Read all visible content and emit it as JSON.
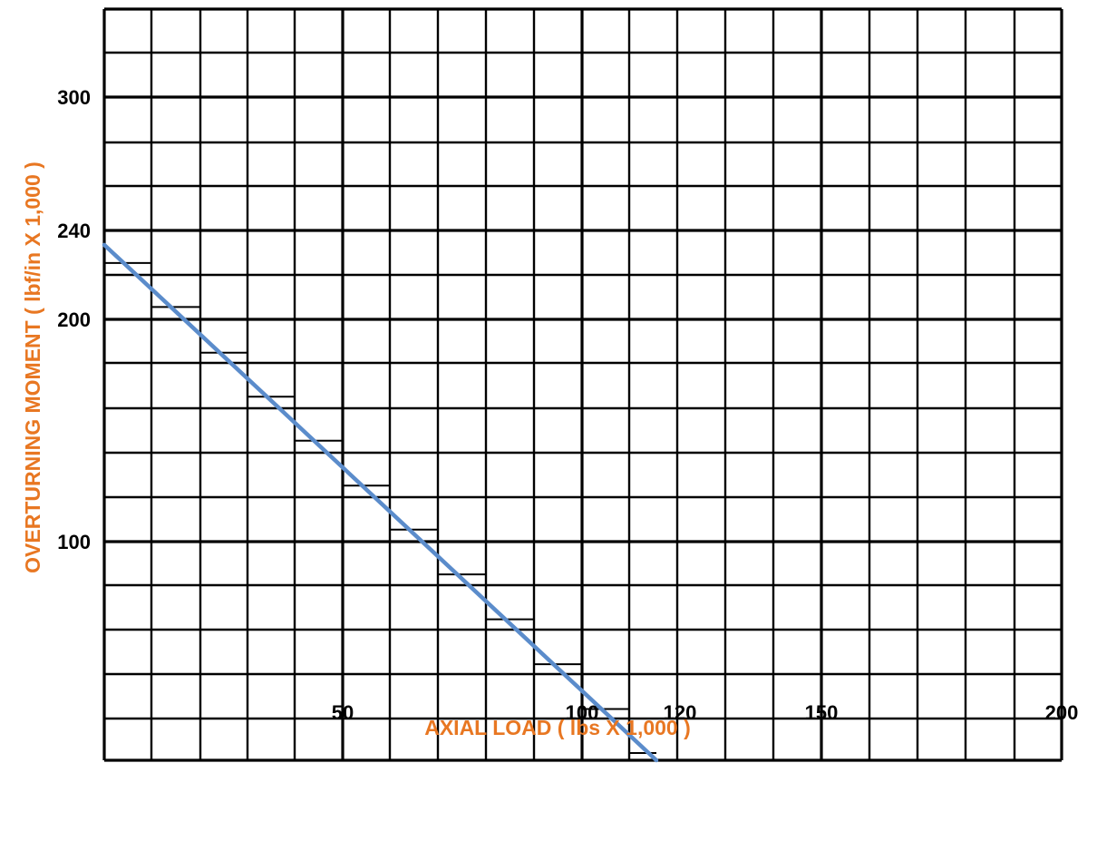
{
  "chart_data": {
    "type": "line",
    "title": "",
    "xlabel": "AXIAL LOAD  ( lbs X 1,000 )",
    "ylabel": "OVERTURNING MOMENT ( lbf/in X 1,000 )",
    "x_tick_labels": [
      "50",
      "100",
      "120",
      "150",
      "200"
    ],
    "y_tick_labels": [
      "300",
      "240",
      "200",
      "100"
    ],
    "grid": true,
    "legend": "none",
    "series": [
      {
        "points": [
          {
            "x": 0,
            "y": 230
          },
          {
            "x": 116,
            "y": 0
          }
        ]
      }
    ]
  },
  "colors": {
    "line": "#5b8ccb",
    "axis_title": "#e87722",
    "grid": "#000000"
  }
}
